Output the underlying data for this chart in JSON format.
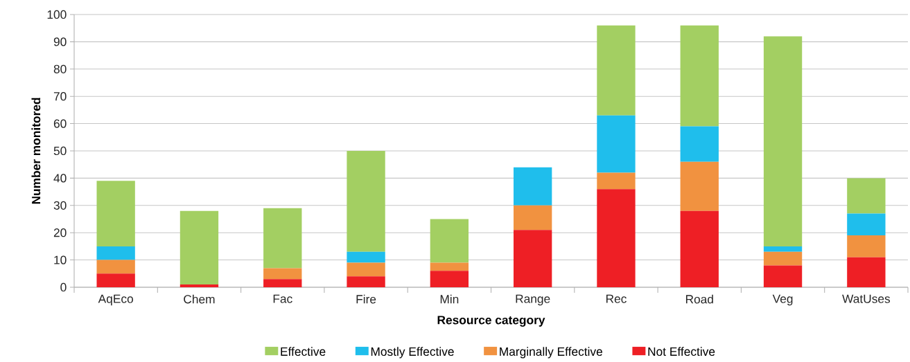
{
  "chart_data": {
    "type": "bar",
    "stacked": true,
    "xlabel": "Resource category",
    "ylabel": "Number monitored",
    "categories": [
      "AqEco",
      "Chem",
      "Fac",
      "Fire",
      "Min",
      "Range",
      "Rec",
      "Road",
      "Veg",
      "WatUses"
    ],
    "series": [
      {
        "name": "Not Effective",
        "color": "#ee1f25",
        "values": [
          5,
          1,
          3,
          4,
          6,
          21,
          36,
          28,
          8,
          11
        ]
      },
      {
        "name": "Marginally Effective",
        "color": "#f19240",
        "values": [
          5,
          0,
          4,
          5,
          3,
          9,
          6,
          18,
          5,
          8
        ]
      },
      {
        "name": "Mostly Effective",
        "color": "#1fbeec",
        "values": [
          5,
          0,
          0,
          4,
          0,
          14,
          21,
          13,
          2,
          8
        ]
      },
      {
        "name": "Effective",
        "color": "#a3cf62",
        "values": [
          24,
          27,
          22,
          37,
          16,
          0,
          33,
          37,
          77,
          13
        ]
      }
    ],
    "ylim": [
      0,
      100
    ],
    "yticks": [
      0,
      10,
      20,
      30,
      40,
      50,
      60,
      70,
      80,
      90,
      100
    ],
    "grid": "y",
    "legend": "bottom"
  }
}
